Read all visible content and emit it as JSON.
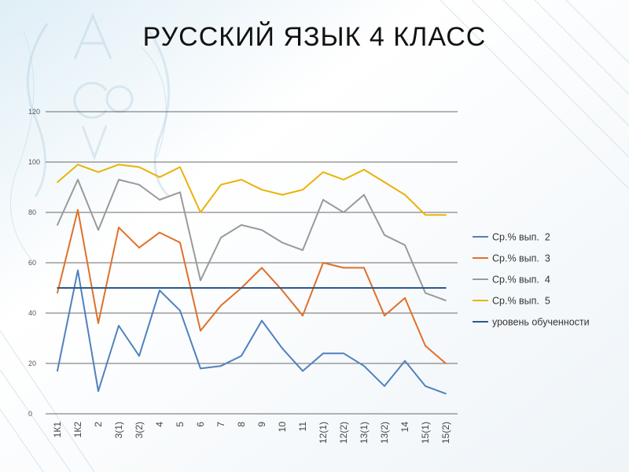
{
  "title": "РУССКИЙ ЯЗЫК 4 КЛАСС",
  "colors": {
    "series2": "#4f81bd",
    "series3": "#e0702a",
    "series4": "#9a9a9a",
    "series5": "#eab308",
    "level": "#2a5a8c",
    "grid": "#3a3a3a"
  },
  "chart_data": {
    "type": "line",
    "categories": [
      "1К1",
      "1К2",
      "2",
      "3(1)",
      "3(2)",
      "4",
      "5",
      "6",
      "7",
      "8",
      "9",
      "10",
      "11",
      "12(1)",
      "12(2)",
      "13(1)",
      "13(2)",
      "14",
      "15(1)",
      "15(2)"
    ],
    "ylim": [
      0,
      120
    ],
    "yticks": [
      0,
      20,
      40,
      60,
      80,
      100,
      120
    ],
    "grid": true,
    "legend_position": "right",
    "series": [
      {
        "name": "Ср.% вып.  2",
        "color": "#4f81bd",
        "values": [
          17,
          57,
          9,
          35,
          23,
          49,
          41,
          18,
          19,
          23,
          37,
          26,
          17,
          24,
          24,
          19,
          11,
          21,
          11,
          8
        ]
      },
      {
        "name": "Ср.% вып.  3",
        "color": "#e0702a",
        "values": [
          48,
          81,
          36,
          74,
          66,
          72,
          68,
          33,
          43,
          50,
          58,
          49,
          39,
          60,
          58,
          58,
          39,
          46,
          27,
          20
        ]
      },
      {
        "name": "Ср.% вып.  4",
        "color": "#9a9a9a",
        "values": [
          75,
          93,
          73,
          93,
          91,
          85,
          88,
          53,
          70,
          75,
          73,
          68,
          65,
          85,
          80,
          87,
          71,
          67,
          48,
          45
        ]
      },
      {
        "name": "Ср.% вып.  5",
        "color": "#eab308",
        "values": [
          92,
          99,
          96,
          99,
          98,
          94,
          98,
          80,
          91,
          93,
          89,
          87,
          89,
          96,
          93,
          97,
          92,
          87,
          79,
          79
        ]
      },
      {
        "name": "уровень обученности",
        "color": "#2a5a8c",
        "values": [
          50,
          50,
          50,
          50,
          50,
          50,
          50,
          50,
          50,
          50,
          50,
          50,
          50,
          50,
          50,
          50,
          50,
          50,
          50,
          50
        ]
      }
    ]
  }
}
